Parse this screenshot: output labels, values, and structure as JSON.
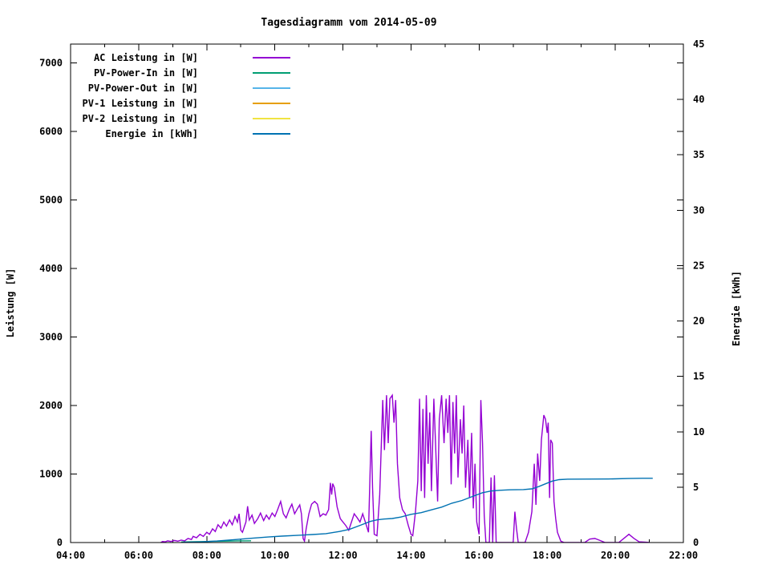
{
  "chart_data": {
    "type": "line",
    "title": "Tagesdiagramm vom 2014-05-09",
    "ylabel_left": "Leistung [W]",
    "ylabel_right": "Energie [kWh]",
    "x_axis": {
      "unit": "time of day",
      "range_hours": [
        4,
        22
      ],
      "major_tick_labels": [
        "04:00",
        "06:00",
        "08:00",
        "10:00",
        "12:00",
        "14:00",
        "16:00",
        "18:00",
        "20:00",
        "22:00"
      ],
      "minor_ticks_every_hours": 1
    },
    "y_left_axis": {
      "label": "Leistung [W]",
      "range": [
        0,
        7275
      ],
      "tick_step": 1000,
      "tick_labels": [
        "0",
        "1000",
        "2000",
        "3000",
        "4000",
        "5000",
        "6000",
        "7000"
      ]
    },
    "y_right_axis": {
      "label": "Energie [kWh]",
      "range": [
        0,
        45
      ],
      "tick_step": 5,
      "tick_labels": [
        "0",
        "5",
        "10",
        "15",
        "20",
        "25",
        "30",
        "35",
        "40",
        "45"
      ]
    },
    "grid": false,
    "legend_position": "top-left-inside",
    "series": [
      {
        "name": "AC Leistung in [W]",
        "color": "#9400d3",
        "axis": "left",
        "visible": true,
        "points": [
          [
            6.65,
            0
          ],
          [
            6.7,
            15
          ],
          [
            6.78,
            10
          ],
          [
            6.85,
            25
          ],
          [
            6.95,
            15
          ],
          [
            7.05,
            30
          ],
          [
            7.15,
            20
          ],
          [
            7.25,
            35
          ],
          [
            7.35,
            25
          ],
          [
            7.45,
            60
          ],
          [
            7.55,
            45
          ],
          [
            7.6,
            90
          ],
          [
            7.7,
            70
          ],
          [
            7.8,
            120
          ],
          [
            7.9,
            90
          ],
          [
            8.0,
            150
          ],
          [
            8.08,
            120
          ],
          [
            8.17,
            200
          ],
          [
            8.25,
            160
          ],
          [
            8.33,
            260
          ],
          [
            8.42,
            210
          ],
          [
            8.5,
            300
          ],
          [
            8.58,
            240
          ],
          [
            8.67,
            330
          ],
          [
            8.75,
            260
          ],
          [
            8.83,
            380
          ],
          [
            8.9,
            300
          ],
          [
            8.95,
            420
          ],
          [
            9.0,
            180
          ],
          [
            9.05,
            150
          ],
          [
            9.15,
            300
          ],
          [
            9.2,
            530
          ],
          [
            9.25,
            330
          ],
          [
            9.33,
            400
          ],
          [
            9.4,
            280
          ],
          [
            9.5,
            350
          ],
          [
            9.58,
            430
          ],
          [
            9.67,
            320
          ],
          [
            9.75,
            400
          ],
          [
            9.83,
            340
          ],
          [
            9.92,
            430
          ],
          [
            10.0,
            380
          ],
          [
            10.08,
            480
          ],
          [
            10.17,
            600
          ],
          [
            10.25,
            420
          ],
          [
            10.33,
            360
          ],
          [
            10.42,
            480
          ],
          [
            10.5,
            560
          ],
          [
            10.58,
            420
          ],
          [
            10.67,
            500
          ],
          [
            10.73,
            550
          ],
          [
            10.78,
            420
          ],
          [
            10.83,
            60
          ],
          [
            10.87,
            20
          ],
          [
            10.92,
            200
          ],
          [
            11.0,
            420
          ],
          [
            11.08,
            560
          ],
          [
            11.17,
            600
          ],
          [
            11.25,
            560
          ],
          [
            11.33,
            380
          ],
          [
            11.42,
            420
          ],
          [
            11.5,
            400
          ],
          [
            11.58,
            480
          ],
          [
            11.63,
            870
          ],
          [
            11.67,
            700
          ],
          [
            11.7,
            860
          ],
          [
            11.75,
            800
          ],
          [
            11.83,
            520
          ],
          [
            11.92,
            350
          ],
          [
            12.0,
            300
          ],
          [
            12.08,
            250
          ],
          [
            12.17,
            180
          ],
          [
            12.25,
            300
          ],
          [
            12.33,
            420
          ],
          [
            12.42,
            360
          ],
          [
            12.5,
            300
          ],
          [
            12.58,
            420
          ],
          [
            12.67,
            280
          ],
          [
            12.75,
            150
          ],
          [
            12.83,
            1630
          ],
          [
            12.87,
            800
          ],
          [
            12.92,
            120
          ],
          [
            13.0,
            100
          ],
          [
            13.08,
            700
          ],
          [
            13.17,
            2080
          ],
          [
            13.22,
            1350
          ],
          [
            13.28,
            2150
          ],
          [
            13.33,
            1450
          ],
          [
            13.38,
            2100
          ],
          [
            13.45,
            2150
          ],
          [
            13.5,
            1750
          ],
          [
            13.55,
            2080
          ],
          [
            13.6,
            1150
          ],
          [
            13.67,
            650
          ],
          [
            13.75,
            480
          ],
          [
            13.83,
            420
          ],
          [
            13.92,
            250
          ],
          [
            14.0,
            120
          ],
          [
            14.05,
            100
          ],
          [
            14.13,
            450
          ],
          [
            14.2,
            900
          ],
          [
            14.25,
            2100
          ],
          [
            14.3,
            750
          ],
          [
            14.35,
            1950
          ],
          [
            14.4,
            650
          ],
          [
            14.45,
            2150
          ],
          [
            14.5,
            1150
          ],
          [
            14.55,
            1900
          ],
          [
            14.6,
            750
          ],
          [
            14.67,
            2100
          ],
          [
            14.72,
            1450
          ],
          [
            14.78,
            600
          ],
          [
            14.83,
            1800
          ],
          [
            14.9,
            2150
          ],
          [
            14.97,
            1450
          ],
          [
            15.03,
            2100
          ],
          [
            15.08,
            1600
          ],
          [
            15.13,
            2150
          ],
          [
            15.18,
            850
          ],
          [
            15.23,
            2050
          ],
          [
            15.28,
            1300
          ],
          [
            15.33,
            2150
          ],
          [
            15.38,
            950
          ],
          [
            15.45,
            1800
          ],
          [
            15.5,
            1300
          ],
          [
            15.55,
            2000
          ],
          [
            15.6,
            800
          ],
          [
            15.67,
            1500
          ],
          [
            15.72,
            650
          ],
          [
            15.78,
            1600
          ],
          [
            15.83,
            500
          ],
          [
            15.88,
            1150
          ],
          [
            15.93,
            300
          ],
          [
            16.0,
            120
          ],
          [
            16.05,
            2080
          ],
          [
            16.1,
            1450
          ],
          [
            16.15,
            400
          ],
          [
            16.2,
            0
          ],
          [
            16.3,
            0
          ],
          [
            16.35,
            950
          ],
          [
            16.4,
            0
          ],
          [
            16.45,
            980
          ],
          [
            16.5,
            0
          ],
          [
            16.7,
            0
          ],
          [
            17.0,
            0
          ],
          [
            17.05,
            450
          ],
          [
            17.1,
            200
          ],
          [
            17.15,
            0
          ],
          [
            17.35,
            0
          ],
          [
            17.45,
            150
          ],
          [
            17.55,
            450
          ],
          [
            17.62,
            1150
          ],
          [
            17.67,
            550
          ],
          [
            17.72,
            1300
          ],
          [
            17.78,
            900
          ],
          [
            17.83,
            1500
          ],
          [
            17.9,
            1860
          ],
          [
            17.95,
            1800
          ],
          [
            18.0,
            1600
          ],
          [
            18.03,
            1750
          ],
          [
            18.07,
            650
          ],
          [
            18.1,
            1500
          ],
          [
            18.15,
            1450
          ],
          [
            18.2,
            600
          ],
          [
            18.25,
            350
          ],
          [
            18.3,
            150
          ],
          [
            18.4,
            20
          ],
          [
            18.5,
            0
          ],
          [
            19.1,
            0
          ],
          [
            19.25,
            50
          ],
          [
            19.4,
            60
          ],
          [
            19.55,
            30
          ],
          [
            19.7,
            0
          ],
          [
            20.1,
            0
          ],
          [
            20.25,
            60
          ],
          [
            20.4,
            120
          ],
          [
            20.55,
            60
          ],
          [
            20.7,
            10
          ],
          [
            20.9,
            5
          ],
          [
            21.0,
            0
          ]
        ]
      },
      {
        "name": "PV-Power-In in [W]",
        "color": "#009e73",
        "axis": "left",
        "visible": true,
        "points": [
          [
            7.25,
            8
          ],
          [
            7.7,
            12
          ],
          [
            8.1,
            16
          ],
          [
            8.5,
            20
          ],
          [
            8.9,
            24
          ],
          [
            9.3,
            26
          ]
        ]
      },
      {
        "name": "PV-Power-Out in [W]",
        "color": "#56b4e9",
        "axis": "left",
        "visible": false,
        "points": []
      },
      {
        "name": "PV-1 Leistung in [W]",
        "color": "#e69f00",
        "axis": "left",
        "visible": false,
        "points": []
      },
      {
        "name": "PV-2 Leistung in [W]",
        "color": "#f0e442",
        "axis": "left",
        "visible": false,
        "points": []
      },
      {
        "name": "Energie in [kWh]",
        "color": "#0072b2",
        "axis": "right",
        "visible": true,
        "points": [
          [
            7.3,
            0.02
          ],
          [
            7.8,
            0.06
          ],
          [
            8.3,
            0.14
          ],
          [
            8.8,
            0.26
          ],
          [
            9.3,
            0.38
          ],
          [
            9.8,
            0.5
          ],
          [
            10.2,
            0.58
          ],
          [
            10.7,
            0.66
          ],
          [
            11.1,
            0.72
          ],
          [
            11.5,
            0.8
          ],
          [
            11.9,
            1.0
          ],
          [
            12.2,
            1.2
          ],
          [
            12.5,
            1.55
          ],
          [
            12.8,
            1.9
          ],
          [
            13.0,
            2.05
          ],
          [
            13.2,
            2.12
          ],
          [
            13.45,
            2.17
          ],
          [
            13.7,
            2.3
          ],
          [
            14.0,
            2.55
          ],
          [
            14.3,
            2.7
          ],
          [
            14.6,
            2.95
          ],
          [
            14.9,
            3.2
          ],
          [
            15.2,
            3.55
          ],
          [
            15.5,
            3.8
          ],
          [
            15.8,
            4.15
          ],
          [
            16.1,
            4.5
          ],
          [
            16.35,
            4.65
          ],
          [
            16.6,
            4.72
          ],
          [
            16.9,
            4.76
          ],
          [
            17.3,
            4.78
          ],
          [
            17.55,
            4.85
          ],
          [
            17.75,
            5.05
          ],
          [
            17.95,
            5.3
          ],
          [
            18.15,
            5.55
          ],
          [
            18.35,
            5.68
          ],
          [
            18.6,
            5.72
          ],
          [
            19.2,
            5.73
          ],
          [
            19.8,
            5.74
          ],
          [
            20.4,
            5.78
          ],
          [
            20.8,
            5.8
          ],
          [
            21.1,
            5.8
          ]
        ]
      }
    ]
  }
}
